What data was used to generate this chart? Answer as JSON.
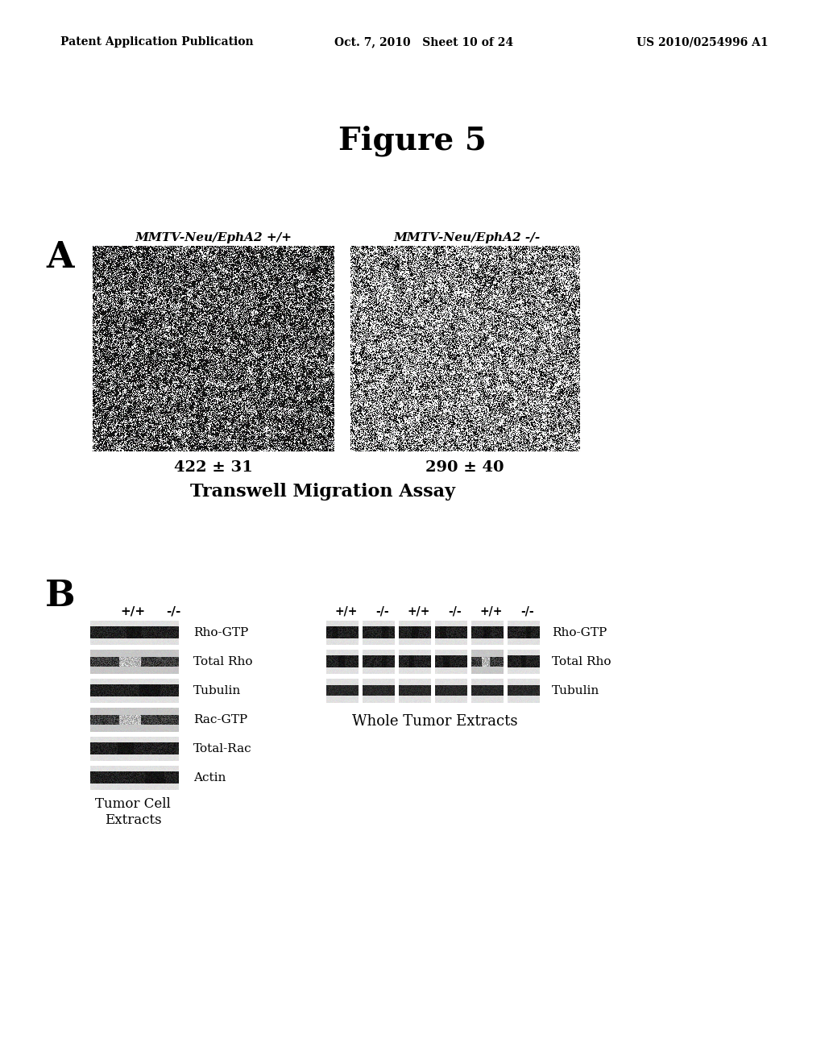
{
  "page_header_left": "Patent Application Publication",
  "page_header_mid": "Oct. 7, 2010   Sheet 10 of 24",
  "page_header_right": "US 2010/0254996 A1",
  "figure_title": "Figure 5",
  "panel_A_label": "A",
  "panel_A_label1": "MMTV-Neu/EphA2 +/+",
  "panel_A_label2": "MMTV-Neu/EphA2 -/-",
  "panel_A_value1": "422 ± 31",
  "panel_A_value2": "290 ± 40",
  "panel_A_caption": "Transwell Migration Assay",
  "panel_B_label": "B",
  "panel_B_left_header1": "+/+",
  "panel_B_left_header2": "-/-",
  "panel_B_right_headers": [
    "+/+",
    "-/-",
    "+/+",
    "-/-",
    "+/+",
    "-/-"
  ],
  "panel_B_left_rows": [
    "Rho-GTP",
    "Total Rho",
    "Tubulin",
    "Rac-GTP",
    "Total-Rac",
    "Actin"
  ],
  "panel_B_right_rows": [
    "Rho-GTP",
    "Total Rho",
    "Tubulin"
  ],
  "panel_B_left_caption_line1": "Tumor Cell",
  "panel_B_left_caption_line2": "Extracts",
  "panel_B_right_caption": "Whole Tumor Extracts",
  "bg_color": "#ffffff",
  "text_color": "#000000"
}
